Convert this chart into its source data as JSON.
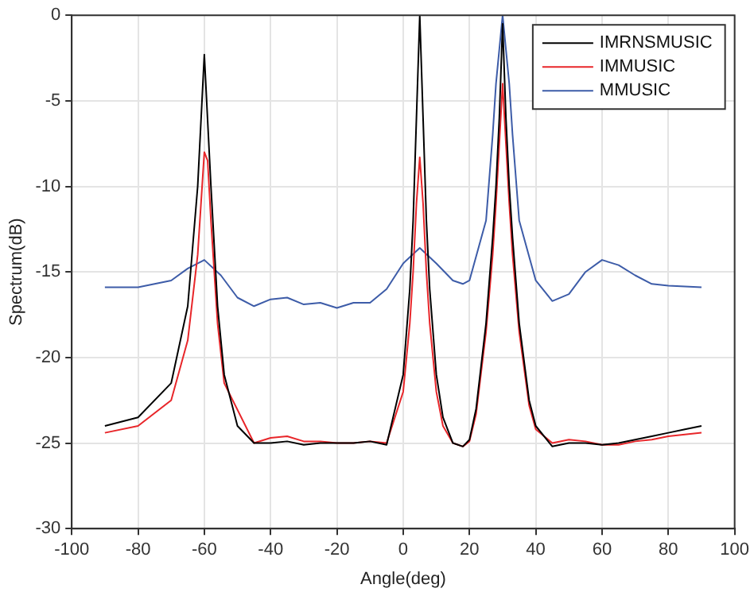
{
  "chart_data": {
    "type": "line",
    "xlabel": "Angle(deg)",
    "ylabel": "Spectrum(dB)",
    "xlim": [
      -100,
      100
    ],
    "xticks": [
      -100,
      -80,
      -60,
      -40,
      -20,
      0,
      20,
      40,
      60,
      80,
      100
    ],
    "ylim": [
      -30,
      0
    ],
    "yticks": [
      -30,
      -25,
      -20,
      -15,
      -10,
      -5,
      0
    ],
    "grid": true,
    "legend": "top right",
    "marker": "none",
    "line_style": "solid",
    "series": [
      {
        "name": "IMRNSMUSIC",
        "color": "#000000",
        "x": [
          -90,
          -80,
          -70,
          -65,
          -62,
          -60,
          -58,
          -56,
          -54,
          -50,
          -45,
          -40,
          -35,
          -30,
          -25,
          -20,
          -15,
          -10,
          -5,
          0,
          2,
          3,
          4,
          5,
          6,
          7,
          8,
          10,
          12,
          15,
          18,
          20,
          22,
          25,
          27,
          28,
          29,
          30,
          31,
          32,
          33,
          35,
          38,
          40,
          45,
          50,
          55,
          60,
          65,
          70,
          75,
          80,
          85,
          90
        ],
        "values": [
          -24,
          -23.5,
          -21.5,
          -17,
          -10,
          -2.3,
          -10,
          -17,
          -21,
          -24,
          -25,
          -25,
          -24.9,
          -25.1,
          -25,
          -25,
          -25,
          -24.9,
          -25.1,
          -21,
          -16,
          -12,
          -6,
          0,
          -6,
          -12,
          -16,
          -21,
          -23.5,
          -25,
          -25.2,
          -24.8,
          -23,
          -18,
          -13,
          -10,
          -6,
          -0.5,
          -6,
          -10,
          -13,
          -18,
          -22.5,
          -24,
          -25.2,
          -25,
          -25,
          -25.1,
          -25,
          -24.8,
          -24.6,
          -24.4,
          -24.2,
          -24
        ]
      },
      {
        "name": "IMMUSIC",
        "color": "#e8262a",
        "x": [
          -90,
          -80,
          -70,
          -65,
          -62,
          -60,
          -59,
          -58,
          -56,
          -54,
          -45,
          -40,
          -35,
          -30,
          -25,
          -20,
          -15,
          -10,
          -5,
          0,
          2,
          3,
          4,
          5,
          6,
          7,
          8,
          10,
          12,
          15,
          18,
          20,
          22,
          25,
          27,
          28,
          29,
          30,
          31,
          32,
          33,
          35,
          38,
          40,
          45,
          50,
          55,
          60,
          65,
          70,
          75,
          80,
          85,
          90
        ],
        "values": [
          -24.4,
          -24,
          -22.5,
          -19,
          -14,
          -8,
          -8.5,
          -12,
          -18,
          -21.5,
          -25,
          -24.7,
          -24.6,
          -24.9,
          -24.9,
          -25,
          -25,
          -24.9,
          -25,
          -22,
          -18,
          -15,
          -11,
          -8.3,
          -11,
          -15,
          -18,
          -22,
          -24,
          -25,
          -25.2,
          -24.9,
          -23.3,
          -18.5,
          -14,
          -11,
          -7.5,
          -4,
          -7.5,
          -11,
          -14,
          -18.5,
          -22.8,
          -24.2,
          -25,
          -24.8,
          -24.9,
          -25.1,
          -25.1,
          -24.9,
          -24.8,
          -24.6,
          -24.5,
          -24.4
        ]
      },
      {
        "name": "MMUSIC",
        "color": "#3d5ca8",
        "x": [
          -90,
          -80,
          -70,
          -65,
          -60,
          -55,
          -50,
          -45,
          -40,
          -35,
          -30,
          -25,
          -20,
          -15,
          -10,
          -5,
          0,
          5,
          10,
          15,
          18,
          20,
          25,
          27,
          28,
          30,
          32,
          33,
          35,
          40,
          45,
          50,
          55,
          60,
          65,
          70,
          75,
          80,
          90
        ],
        "values": [
          -15.9,
          -15.9,
          -15.5,
          -14.8,
          -14.3,
          -15.2,
          -16.5,
          -17,
          -16.6,
          -16.5,
          -16.9,
          -16.8,
          -17.1,
          -16.8,
          -16.8,
          -16,
          -14.5,
          -13.6,
          -14.5,
          -15.5,
          -15.7,
          -15.5,
          -12,
          -7,
          -4,
          0,
          -4,
          -7,
          -12,
          -15.5,
          -16.7,
          -16.3,
          -15,
          -14.3,
          -14.6,
          -15.2,
          -15.7,
          -15.8,
          -15.9
        ]
      }
    ]
  }
}
